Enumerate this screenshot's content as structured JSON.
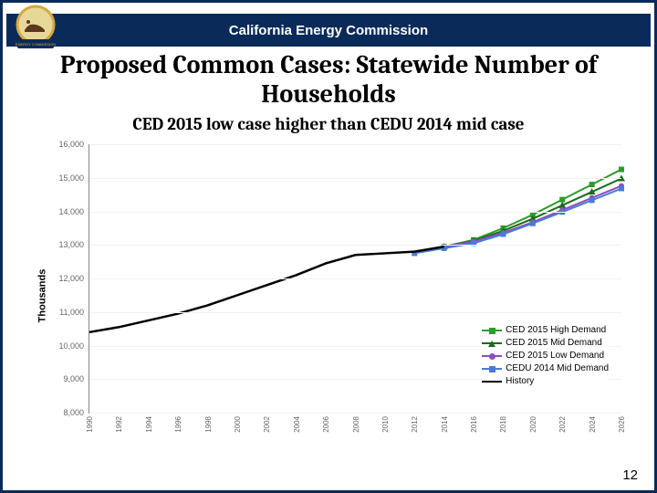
{
  "header": {
    "org": "California Energy Commission"
  },
  "title": "Proposed Common Cases: Statewide Number of Households",
  "subtitle": "CED 2015 low case higher than CEDU 2014 mid case",
  "page_number": "12",
  "chart": {
    "type": "line",
    "y_axis_label": "Thousands",
    "ylim": [
      8000,
      16000
    ],
    "yticks": [
      8000,
      9000,
      10000,
      11000,
      12000,
      13000,
      14000,
      15000,
      16000
    ],
    "ytick_labels": [
      "8,000",
      "9,000",
      "10,000",
      "11,000",
      "12,000",
      "13,000",
      "14,000",
      "15,000",
      "16,000"
    ],
    "x_categories": [
      "1990",
      "1992",
      "1994",
      "1996",
      "1998",
      "2000",
      "2002",
      "2004",
      "2006",
      "2008",
      "2010",
      "2012",
      "2014",
      "2016",
      "2018",
      "2020",
      "2022",
      "2024",
      "2026"
    ],
    "grid_color": "#f2f2f2",
    "background_color": "#ffffff",
    "series": [
      {
        "name": "CED 2015 High Demand",
        "color": "#2e9b2e",
        "marker": "square",
        "line_width": 2,
        "x_start": 12,
        "y": [
          12950,
          13150,
          13500,
          13900,
          14350,
          14800,
          15250
        ]
      },
      {
        "name": "CED 2015 Mid Demand",
        "color": "#1a6b1a",
        "marker": "triangle",
        "line_width": 2,
        "x_start": 12,
        "y": [
          12950,
          13120,
          13420,
          13780,
          14180,
          14580,
          14980
        ]
      },
      {
        "name": "CED 2015 Low Demand",
        "color": "#8a4fbf",
        "marker": "circle",
        "line_width": 2,
        "x_start": 12,
        "y": [
          12950,
          13100,
          13360,
          13680,
          14040,
          14400,
          14760
        ]
      },
      {
        "name": "CEDU 2014 Mid Demand",
        "color": "#4a7bd4",
        "marker": "square",
        "line_width": 2,
        "x_start": 11,
        "y": [
          12750,
          12900,
          13050,
          13320,
          13640,
          13980,
          14330,
          14680
        ]
      },
      {
        "name": "History",
        "color": "#000000",
        "marker": "none",
        "line_width": 2.5,
        "x_start": 0,
        "y": [
          10400,
          10550,
          10750,
          10950,
          11200,
          11500,
          11800,
          12100,
          12450,
          12700,
          12750,
          12800,
          12950
        ]
      }
    ],
    "legend": {
      "items": [
        {
          "label": "CED 2015 High Demand",
          "color": "#2e9b2e",
          "marker": "square"
        },
        {
          "label": "CED 2015 Mid Demand",
          "color": "#1a6b1a",
          "marker": "triangle"
        },
        {
          "label": "CED 2015 Low Demand",
          "color": "#8a4fbf",
          "marker": "circle"
        },
        {
          "label": "CEDU 2014 Mid Demand",
          "color": "#4a7bd4",
          "marker": "square"
        },
        {
          "label": "History",
          "color": "#000000",
          "marker": "none"
        }
      ]
    }
  },
  "logo": {
    "ring_color": "#d4a843",
    "inner_bg": "#e8d898",
    "bear_color": "#5a3820",
    "banner_color": "#0a2b5a"
  }
}
